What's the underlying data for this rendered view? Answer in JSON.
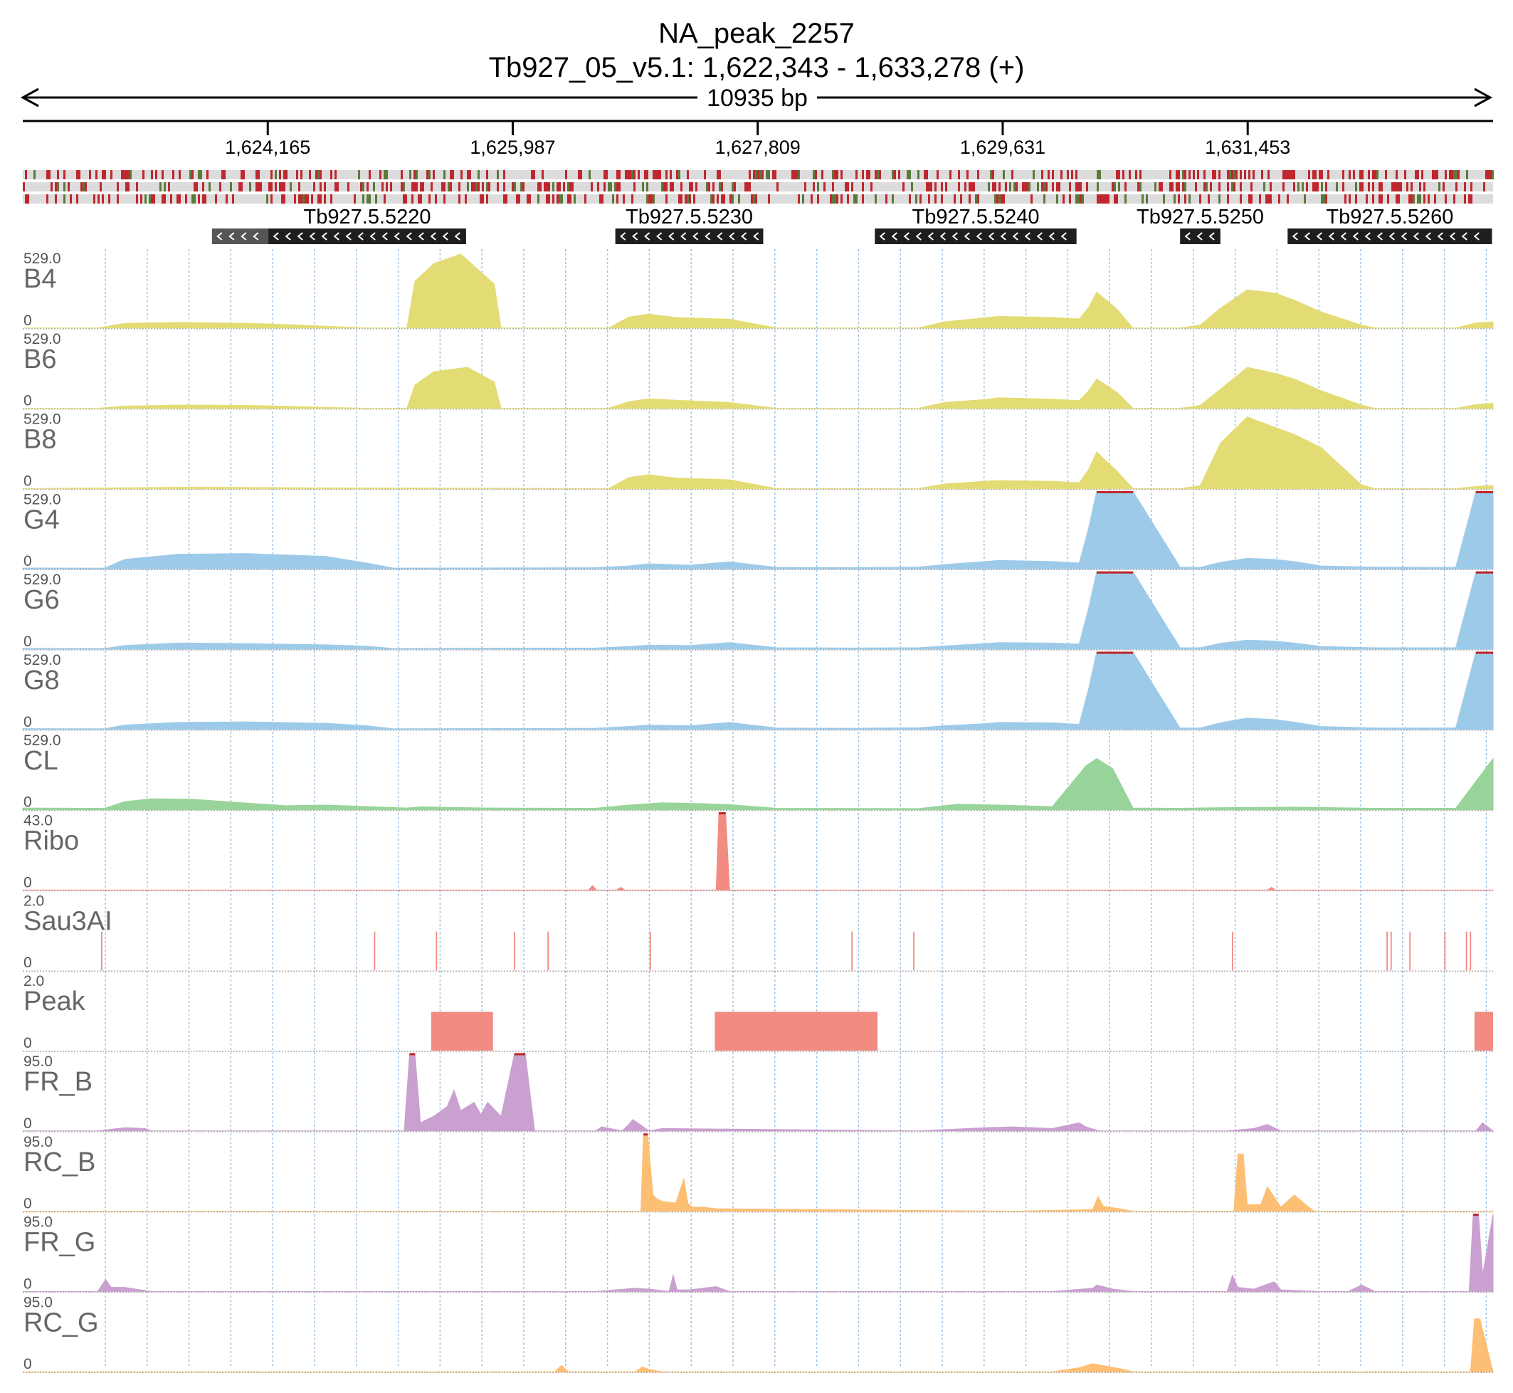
{
  "title": "NA_peak_2257",
  "subtitle": "Tb927_05_v5.1: 1,622,343 - 1,633,278 (+)",
  "region": {
    "start": 1622343,
    "end": 1633278,
    "span_label": "10935 bp"
  },
  "chart_data": {
    "type": "area",
    "x_unit": "bp",
    "xlim": [
      1622343,
      1633278
    ],
    "ticks": [
      {
        "pos": 1624165,
        "label": "1,624,165"
      },
      {
        "pos": 1625987,
        "label": "1,625,987"
      },
      {
        "pos": 1627809,
        "label": "1,627,809"
      },
      {
        "pos": 1629631,
        "label": "1,629,631"
      },
      {
        "pos": 1631453,
        "label": "1,631,453"
      }
    ],
    "genes": [
      {
        "name": "",
        "start": 1623750,
        "end": 1624180,
        "strand": "-",
        "color": "#555555"
      },
      {
        "name": "Tb927.5.5220",
        "start": 1624170,
        "end": 1625640,
        "strand": "-",
        "color": "#1e1e1e"
      },
      {
        "name": "Tb927.5.5230",
        "start": 1626750,
        "end": 1627850,
        "strand": "-",
        "color": "#1e1e1e"
      },
      {
        "name": "Tb927.5.5240",
        "start": 1628680,
        "end": 1630180,
        "strand": "-",
        "color": "#1e1e1e"
      },
      {
        "name": "Tb927.5.5250",
        "start": 1630950,
        "end": 1631250,
        "strand": "-",
        "color": "#1e1e1e"
      },
      {
        "name": "Tb927.5.5260",
        "start": 1631750,
        "end": 1633270,
        "strand": "-",
        "color": "#1e1e1e"
      }
    ],
    "series": [
      {
        "name": "B4",
        "max": 529.0,
        "min": 0,
        "color": "#e3dc74",
        "x": [
          1622343,
          1622900,
          1623100,
          1623500,
          1624000,
          1624300,
          1624900,
          1625200,
          1625260,
          1625400,
          1625600,
          1625850,
          1625900,
          1626700,
          1626850,
          1627000,
          1627200,
          1627600,
          1627950,
          1629000,
          1629200,
          1629500,
          1629600,
          1630000,
          1630200,
          1630270,
          1630330,
          1630480,
          1630600,
          1630950,
          1631100,
          1631250,
          1631450,
          1631650,
          1631800,
          1632000,
          1632300,
          1632400,
          1633000,
          1633150,
          1633278
        ],
        "values": [
          0,
          0,
          32,
          38,
          32,
          24,
          0,
          0,
          320,
          440,
          505,
          300,
          0,
          0,
          75,
          95,
          72,
          60,
          0,
          0,
          42,
          70,
          80,
          72,
          62,
          140,
          245,
          130,
          0,
          0,
          20,
          135,
          260,
          240,
          190,
          110,
          20,
          0,
          0,
          35,
          42
        ]
      },
      {
        "name": "B6",
        "max": 529.0,
        "min": 0,
        "color": "#e3dc74",
        "x": [
          1622343,
          1622900,
          1623100,
          1623500,
          1624000,
          1624300,
          1624900,
          1625200,
          1625260,
          1625400,
          1625650,
          1625850,
          1625900,
          1626700,
          1626850,
          1627000,
          1627200,
          1627600,
          1627950,
          1629000,
          1629200,
          1629500,
          1629600,
          1630000,
          1630200,
          1630270,
          1630330,
          1630480,
          1630600,
          1630950,
          1631100,
          1631250,
          1631450,
          1631650,
          1631800,
          1632000,
          1632300,
          1632400,
          1633000,
          1633150,
          1633278
        ],
        "values": [
          0,
          0,
          15,
          22,
          20,
          14,
          0,
          0,
          160,
          250,
          280,
          180,
          0,
          0,
          45,
          65,
          55,
          40,
          0,
          0,
          40,
          60,
          72,
          62,
          52,
          120,
          200,
          110,
          0,
          0,
          20,
          130,
          280,
          240,
          200,
          120,
          22,
          0,
          0,
          25,
          35
        ]
      },
      {
        "name": "B8",
        "max": 529.0,
        "min": 0,
        "color": "#e3dc74",
        "x": [
          1622343,
          1623200,
          1623600,
          1624500,
          1626700,
          1626850,
          1627000,
          1627200,
          1627600,
          1627950,
          1629000,
          1629200,
          1629500,
          1629600,
          1630000,
          1630200,
          1630270,
          1630330,
          1630480,
          1630600,
          1630950,
          1631100,
          1631250,
          1631450,
          1631650,
          1631800,
          1632000,
          1632300,
          1632400,
          1633000,
          1633150,
          1633278
        ],
        "values": [
          0,
          6,
          10,
          5,
          0,
          75,
          95,
          72,
          60,
          0,
          0,
          32,
          50,
          55,
          50,
          40,
          130,
          250,
          120,
          0,
          0,
          20,
          310,
          490,
          420,
          370,
          280,
          25,
          0,
          0,
          14,
          22
        ]
      },
      {
        "name": "G4",
        "max": 529.0,
        "min": 0,
        "color": "#9ecae9",
        "x": [
          1622343,
          1622800,
          1622950,
          1623100,
          1623500,
          1624000,
          1624600,
          1624900,
          1625100,
          1626600,
          1626850,
          1627000,
          1627300,
          1627600,
          1627950,
          1628500,
          1629000,
          1629200,
          1629500,
          1629600,
          1630000,
          1630200,
          1630270,
          1630330,
          1630480,
          1630600,
          1630950,
          1631100,
          1631250,
          1631450,
          1631650,
          1631800,
          1632000,
          1632400,
          1633000,
          1633150,
          1633278
        ],
        "values": [
          6,
          5,
          5,
          65,
          100,
          105,
          85,
          40,
          5,
          8,
          20,
          35,
          25,
          48,
          10,
          8,
          12,
          30,
          50,
          58,
          50,
          40,
          280,
          529,
          529,
          529,
          12,
          10,
          45,
          72,
          65,
          50,
          20,
          12,
          10,
          529,
          529
        ]
      },
      {
        "name": "G6",
        "max": 529.0,
        "min": 0,
        "color": "#9ecae9",
        "x": [
          1622343,
          1622800,
          1622950,
          1623100,
          1623500,
          1624000,
          1624600,
          1624900,
          1625100,
          1626600,
          1626850,
          1627000,
          1627300,
          1627600,
          1627950,
          1628500,
          1629000,
          1629200,
          1629500,
          1629600,
          1630000,
          1630200,
          1630270,
          1630330,
          1630480,
          1630600,
          1630950,
          1631100,
          1631250,
          1631450,
          1631650,
          1631800,
          1632000,
          1632400,
          1633000,
          1633150,
          1633278
        ],
        "values": [
          6,
          5,
          5,
          25,
          42,
          38,
          30,
          20,
          5,
          8,
          18,
          28,
          25,
          45,
          10,
          8,
          10,
          22,
          38,
          45,
          42,
          35,
          280,
          529,
          529,
          529,
          10,
          10,
          40,
          62,
          55,
          42,
          18,
          10,
          10,
          529,
          529
        ]
      },
      {
        "name": "G8",
        "max": 529.0,
        "min": 0,
        "color": "#9ecae9",
        "x": [
          1622343,
          1622800,
          1622950,
          1623100,
          1623500,
          1624000,
          1624600,
          1624900,
          1625100,
          1626600,
          1626850,
          1627000,
          1627300,
          1627600,
          1627950,
          1628500,
          1629000,
          1629200,
          1629500,
          1629600,
          1630000,
          1630200,
          1630270,
          1630330,
          1630480,
          1630600,
          1630950,
          1631100,
          1631250,
          1631450,
          1631650,
          1631800,
          1632000,
          1632400,
          1633000,
          1633150,
          1633278
        ],
        "values": [
          6,
          5,
          5,
          30,
          48,
          52,
          42,
          25,
          5,
          8,
          20,
          30,
          25,
          48,
          10,
          8,
          12,
          25,
          40,
          48,
          45,
          35,
          280,
          529,
          529,
          529,
          10,
          10,
          45,
          78,
          68,
          50,
          20,
          10,
          10,
          529,
          529
        ]
      },
      {
        "name": "CL",
        "max": 529.0,
        "min": 0,
        "color": "#98d49a",
        "x": [
          1622343,
          1622950,
          1623100,
          1623300,
          1623600,
          1624100,
          1624300,
          1624600,
          1624900,
          1625200,
          1625300,
          1625800,
          1626600,
          1626850,
          1627100,
          1627400,
          1627600,
          1627950,
          1629000,
          1629300,
          1629600,
          1630000,
          1630250,
          1630330,
          1630450,
          1630600,
          1630950,
          1631200,
          1631800,
          1632400,
          1633000,
          1633278
        ],
        "values": [
          12,
          10,
          55,
          75,
          72,
          40,
          28,
          32,
          22,
          12,
          20,
          12,
          10,
          32,
          48,
          42,
          35,
          10,
          8,
          38,
          32,
          22,
          300,
          350,
          280,
          12,
          10,
          14,
          18,
          10,
          10,
          350
        ]
      },
      {
        "name": "Ribo",
        "max": 43.0,
        "min": 0,
        "color": "#f28b82",
        "x": [
          1622343,
          1626550,
          1626580,
          1626610,
          1626700,
          1626760,
          1626790,
          1626820,
          1627500,
          1627520,
          1627540,
          1627570,
          1627600,
          1631600,
          1631630,
          1631660,
          1633278
        ],
        "values": [
          0,
          0,
          2.5,
          0,
          0,
          0,
          1.5,
          0,
          0,
          43,
          43,
          43,
          0,
          0,
          1.5,
          0,
          0
        ]
      },
      {
        "name": "Sau3AI",
        "max": 2.0,
        "min": 0,
        "color": "#f28b82",
        "type": "sticks",
        "sites": [
          1622930,
          1624960,
          1625420,
          1626000,
          1626250,
          1627010,
          1628510,
          1628970,
          1631340,
          1632490,
          1632520,
          1632660,
          1632920,
          1633080,
          1633110
        ]
      },
      {
        "name": "Peak",
        "max": 2.0,
        "min": 0,
        "color": "#f28b82",
        "intervals": [
          [
            1625380,
            1625840
          ],
          [
            1627490,
            1628700
          ],
          [
            1633140,
            1633278
          ]
        ],
        "value": 1
      },
      {
        "name": "FR_B",
        "max": 95.0,
        "min": 0,
        "color": "#c9a0cf",
        "x": [
          1622343,
          1622900,
          1623050,
          1623100,
          1623250,
          1623300,
          1625180,
          1625220,
          1625260,
          1625300,
          1625400,
          1625500,
          1625550,
          1625600,
          1625700,
          1625750,
          1625800,
          1625900,
          1626000,
          1626080,
          1626150,
          1626200,
          1626400,
          1626600,
          1626650,
          1626800,
          1626850,
          1626880,
          1626950,
          1627000,
          1627100,
          1629000,
          1629500,
          1629700,
          1630000,
          1630200,
          1630250,
          1630350,
          1630500,
          1631300,
          1631500,
          1631600,
          1631700,
          1632000,
          1632400,
          1633150,
          1633200,
          1633278
        ],
        "values": [
          0,
          0,
          3,
          4,
          3,
          0,
          0,
          95,
          95,
          10,
          18,
          30,
          50,
          25,
          35,
          20,
          35,
          18,
          95,
          95,
          0,
          0,
          0,
          0,
          5,
          0,
          8,
          14,
          6,
          0,
          3,
          0,
          4,
          5,
          3,
          10,
          5,
          0,
          0,
          0,
          3,
          8,
          0,
          0,
          0,
          0,
          10,
          0
        ]
      },
      {
        "name": "RC_B",
        "max": 95.0,
        "min": 0,
        "color": "#fdbf74",
        "x": [
          1622343,
          1626700,
          1626940,
          1626960,
          1626990,
          1627030,
          1627060,
          1627100,
          1627200,
          1627260,
          1627290,
          1627320,
          1627400,
          1627500,
          1629700,
          1630300,
          1630340,
          1630380,
          1630500,
          1630600,
          1631350,
          1631380,
          1631420,
          1631450,
          1631550,
          1631600,
          1631700,
          1631800,
          1631900,
          1631950,
          1633278
        ],
        "values": [
          0,
          0,
          0,
          95,
          95,
          20,
          15,
          12,
          10,
          40,
          10,
          5,
          5,
          3,
          0,
          2,
          18,
          6,
          3,
          0,
          0,
          70,
          70,
          8,
          8,
          30,
          5,
          20,
          6,
          0,
          0
        ]
      },
      {
        "name": "FR_G",
        "max": 95.0,
        "min": 0,
        "color": "#c9a0cf",
        "x": [
          1622343,
          1622900,
          1622960,
          1623000,
          1623100,
          1623300,
          1626000,
          1626200,
          1626600,
          1626900,
          1627000,
          1627150,
          1627180,
          1627210,
          1627300,
          1627500,
          1627600,
          1629000,
          1630000,
          1630300,
          1630330,
          1630450,
          1630600,
          1631300,
          1631340,
          1631380,
          1631500,
          1631650,
          1631700,
          1632000,
          1632200,
          1632300,
          1632400,
          1633100,
          1633130,
          1633170,
          1633200,
          1633278
        ],
        "values": [
          0,
          0,
          15,
          5,
          5,
          0,
          0,
          0,
          0,
          4,
          3,
          0,
          20,
          2,
          2,
          6,
          0,
          0,
          0,
          4,
          8,
          3,
          0,
          0,
          20,
          5,
          3,
          12,
          2,
          0,
          0,
          8,
          0,
          0,
          95,
          95,
          20,
          95
        ]
      },
      {
        "name": "RC_G",
        "max": 95.0,
        "min": 0,
        "color": "#fdbf74",
        "x": [
          1622343,
          1626300,
          1626350,
          1626400,
          1626900,
          1626950,
          1627000,
          1627100,
          1630000,
          1630200,
          1630300,
          1630500,
          1630600,
          1633110,
          1633140,
          1633180,
          1633278
        ],
        "values": [
          0,
          0,
          8,
          0,
          0,
          6,
          3,
          0,
          0,
          5,
          10,
          4,
          0,
          0,
          65,
          65,
          0
        ]
      }
    ]
  }
}
